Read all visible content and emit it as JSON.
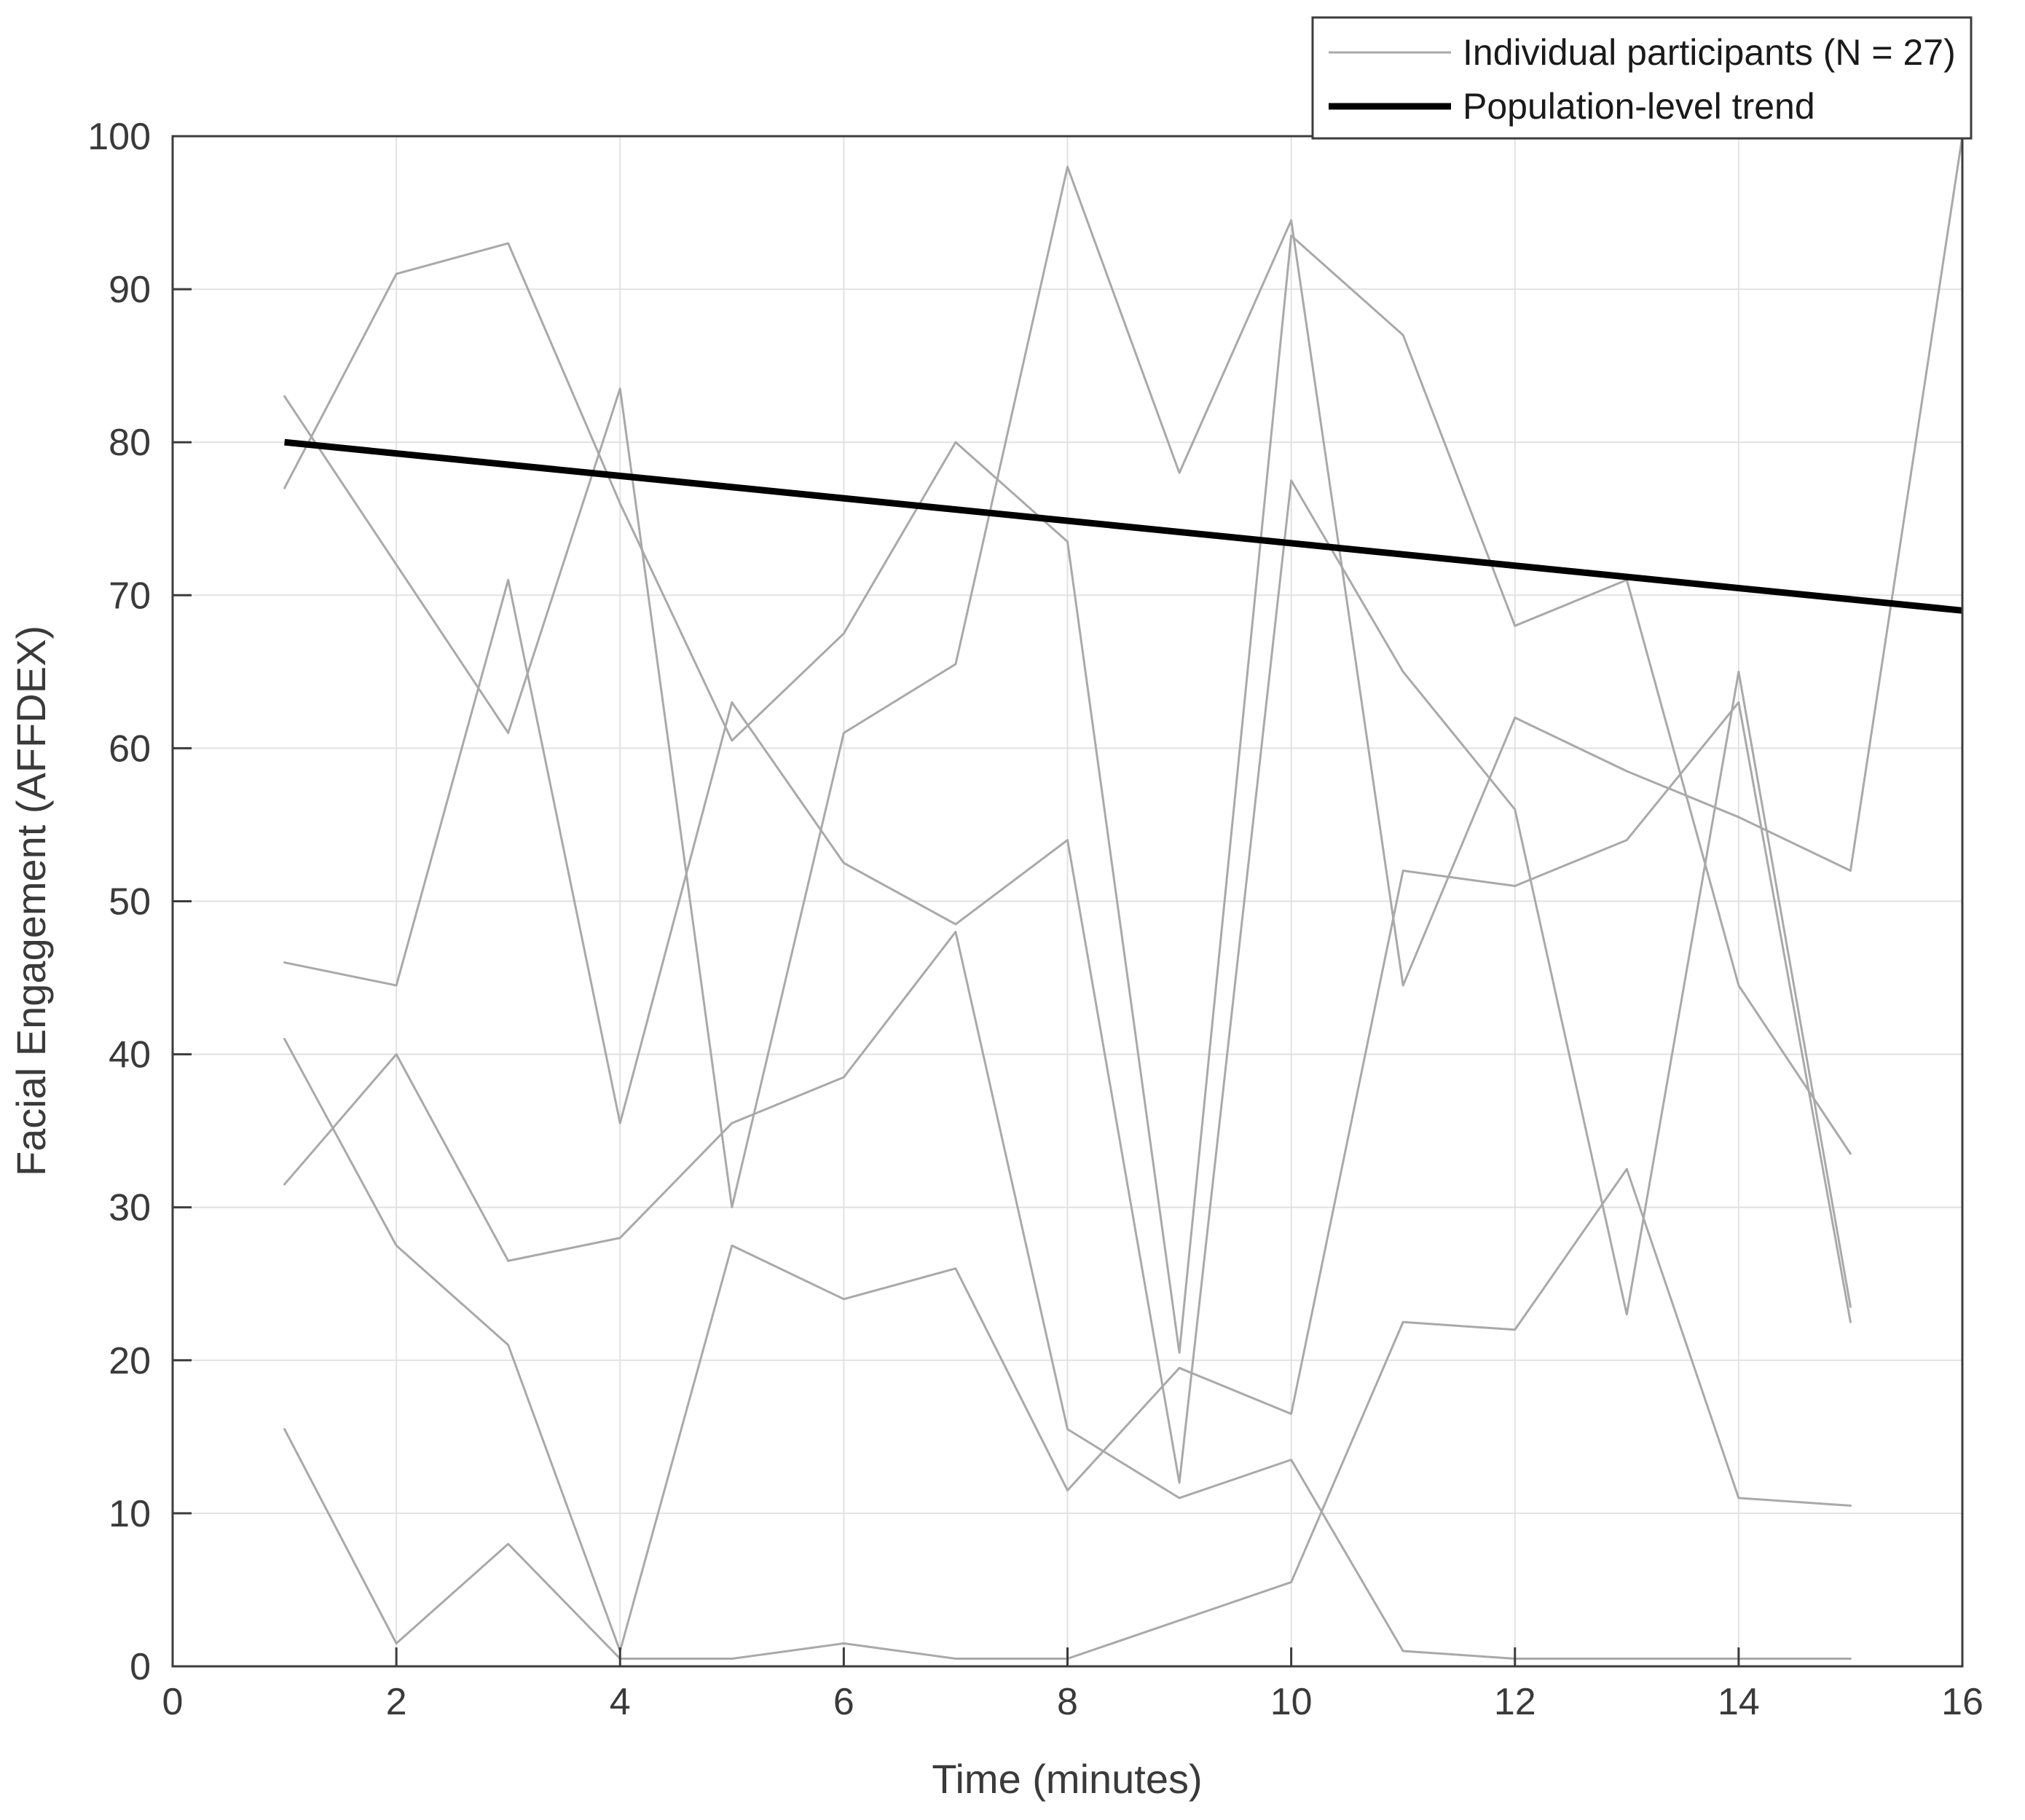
{
  "chart_data": {
    "type": "line",
    "title": "",
    "xlabel": "Time (minutes)",
    "ylabel": "Facial Engagement (AFFDEX)",
    "xlim": [
      0,
      16
    ],
    "ylim": [
      0,
      100
    ],
    "xticks": [
      0,
      2,
      4,
      6,
      8,
      10,
      12,
      14,
      16
    ],
    "yticks": [
      0,
      10,
      20,
      30,
      40,
      50,
      60,
      70,
      80,
      90,
      100
    ],
    "grid": true,
    "legend": {
      "position": "top-right",
      "entries": [
        {
          "label": "Individual participants (N = 27)",
          "color": "#a9a9a9",
          "line_width": 3
        },
        {
          "label": "Population-level trend",
          "color": "#000000",
          "line_width": 9
        }
      ]
    },
    "series": [
      {
        "name": "participant-1",
        "role": "participant",
        "x": [
          1,
          2,
          3,
          4,
          5,
          6,
          7,
          8,
          9,
          10,
          11,
          12,
          13,
          14,
          15
        ],
        "y": [
          77,
          91,
          93,
          76,
          60.5,
          67.5,
          80,
          73.5,
          20.5,
          93.5,
          87,
          68,
          71,
          44.5,
          33.5
        ]
      },
      {
        "name": "participant-2",
        "role": "participant",
        "x": [
          1,
          2,
          3,
          4,
          5,
          6,
          7,
          8,
          9,
          10,
          11,
          12,
          13,
          14,
          15,
          16
        ],
        "y": [
          83,
          72,
          61,
          83.5,
          30,
          61,
          65.5,
          98,
          78,
          94.5,
          44.5,
          62,
          58.5,
          55.5,
          52,
          100
        ]
      },
      {
        "name": "participant-3",
        "role": "participant",
        "x": [
          1,
          2,
          3,
          4,
          5,
          6,
          7,
          8,
          9,
          10,
          11,
          12,
          13,
          14,
          15
        ],
        "y": [
          46,
          44.5,
          71,
          35.5,
          63,
          52.5,
          48.5,
          54,
          12,
          77.5,
          65,
          56,
          23,
          65,
          23.5
        ]
      },
      {
        "name": "participant-4",
        "role": "participant",
        "x": [
          1,
          2,
          3,
          4,
          5,
          6,
          7,
          8,
          9,
          10,
          11,
          12,
          13,
          14,
          15
        ],
        "y": [
          41,
          27.5,
          21,
          1,
          27.5,
          24,
          26,
          11.5,
          19.5,
          16.5,
          52,
          51,
          54,
          63,
          22.5
        ]
      },
      {
        "name": "participant-5",
        "role": "participant",
        "x": [
          1,
          2,
          3,
          4,
          5,
          6,
          7,
          8,
          9,
          10,
          11,
          12,
          13,
          14,
          15
        ],
        "y": [
          31.5,
          40,
          26.5,
          28,
          35.5,
          38.5,
          48,
          15.5,
          11,
          13.5,
          1,
          0.5,
          0.5,
          0.5,
          0.5
        ]
      },
      {
        "name": "participant-6",
        "role": "participant",
        "x": [
          1,
          2,
          3,
          4,
          5,
          6,
          7,
          8,
          9,
          10,
          11,
          12,
          13,
          14,
          15
        ],
        "y": [
          15.5,
          1.5,
          8,
          0.5,
          0.5,
          1.5,
          0.5,
          0.5,
          3,
          5.5,
          22.5,
          22,
          32.5,
          11,
          10.5
        ]
      },
      {
        "name": "population-trend",
        "role": "trend",
        "x": [
          1,
          16
        ],
        "y": [
          80,
          69
        ]
      }
    ],
    "colors": {
      "participant_line": "#a9a9a9",
      "trend_line": "#000000",
      "gridline": "#e2e2e2",
      "axis": "#3c3c3c",
      "tick_label": "#3a3a3a",
      "background": "#ffffff"
    }
  }
}
